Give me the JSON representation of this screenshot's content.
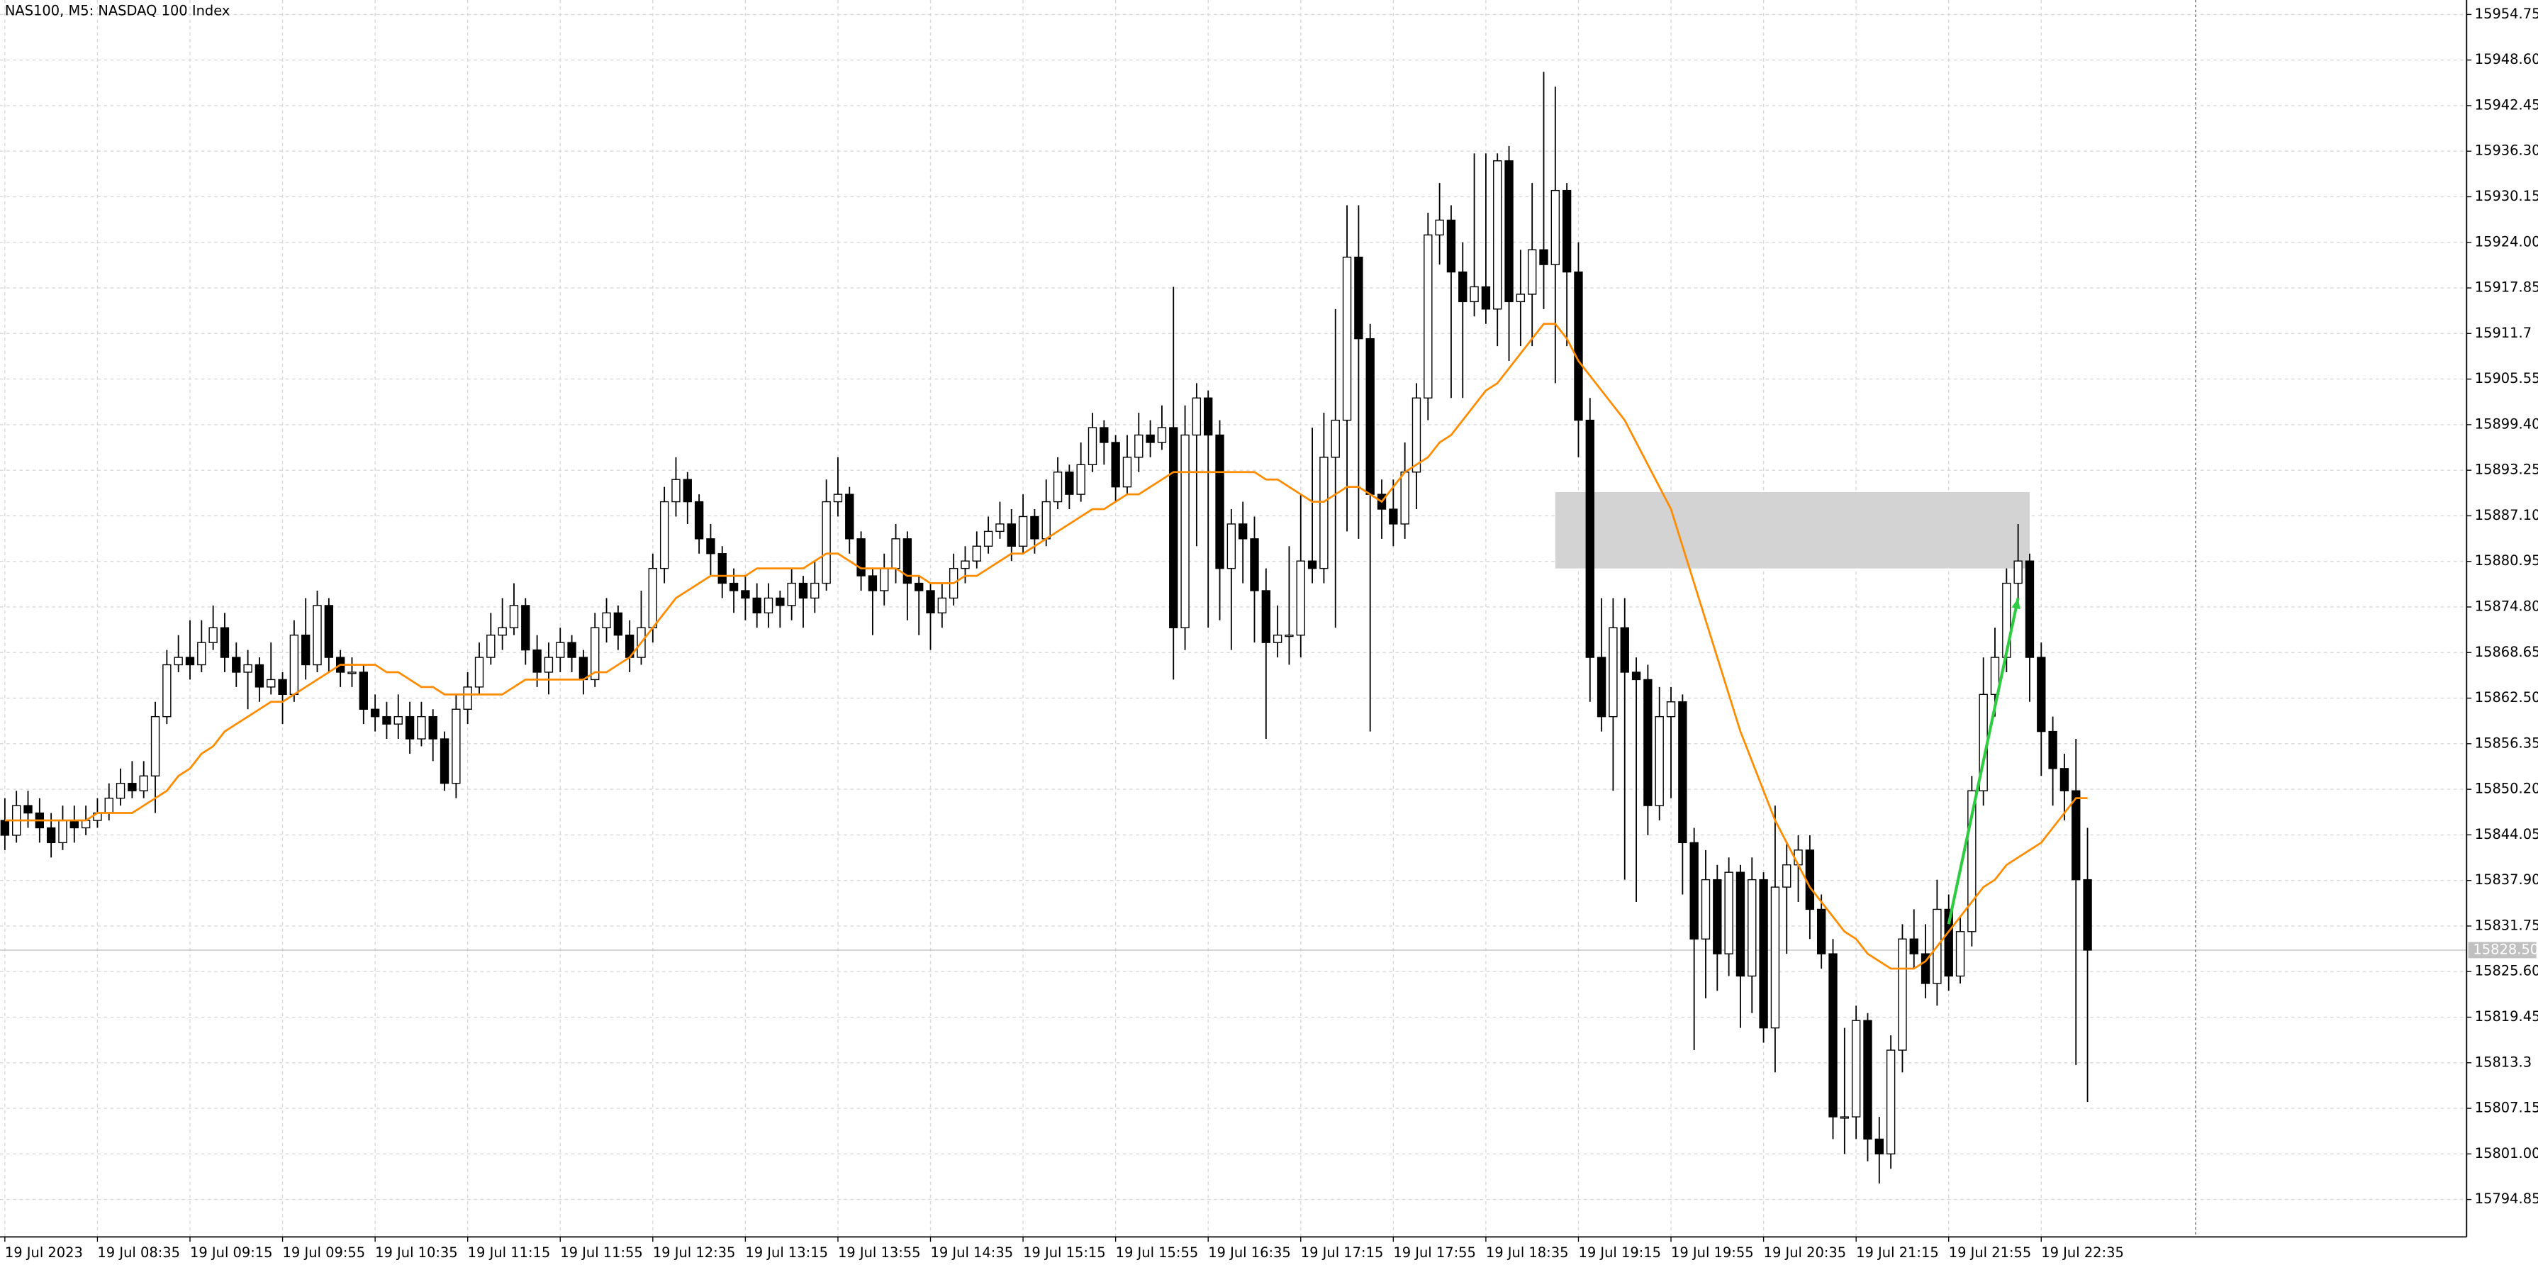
{
  "chart_data": {
    "type": "candlestick",
    "title": "NAS100, M5:  NASDAQ 100 Index",
    "categories": [
      "19 Jul 2023",
      null,
      null,
      null,
      null,
      null,
      null,
      null,
      "19 Jul 08:35",
      null,
      null,
      null,
      null,
      null,
      null,
      null,
      "19 Jul 09:15",
      null,
      null,
      null,
      null,
      null,
      null,
      null,
      "19 Jul 09:55",
      null,
      null,
      null,
      null,
      null,
      null,
      null,
      "19 Jul 10:35",
      null,
      null,
      null,
      null,
      null,
      null,
      null,
      "19 Jul 11:15",
      null,
      null,
      null,
      null,
      null,
      null,
      null,
      "19 Jul 11:55",
      null,
      null,
      null,
      null,
      null,
      null,
      null,
      "19 Jul 12:35",
      null,
      null,
      null,
      null,
      null,
      null,
      null,
      "19 Jul 13:15",
      null,
      null,
      null,
      null,
      null,
      null,
      null,
      "19 Jul 13:55",
      null,
      null,
      null,
      null,
      null,
      null,
      null,
      "19 Jul 14:35",
      null,
      null,
      null,
      null,
      null,
      null,
      null,
      "19 Jul 15:15",
      null,
      null,
      null,
      null,
      null,
      null,
      null,
      "19 Jul 15:55",
      null,
      null,
      null,
      null,
      null,
      null,
      null,
      "19 Jul 16:35",
      null,
      null,
      null,
      null,
      null,
      null,
      null,
      "19 Jul 17:15",
      null,
      null,
      null,
      null,
      null,
      null,
      null,
      "19 Jul 17:55",
      null,
      null,
      null,
      null,
      null,
      null,
      null,
      "19 Jul 18:35",
      null,
      null,
      null,
      null,
      null,
      null,
      null,
      "19 Jul 19:15",
      null,
      null,
      null,
      null,
      null,
      null,
      null,
      "19 Jul 19:55",
      null,
      null,
      null,
      null,
      null,
      null,
      null,
      "19 Jul 20:35",
      null,
      null,
      null,
      null,
      null,
      null,
      null,
      "19 Jul 21:15",
      null,
      null,
      null,
      null,
      null,
      null,
      null,
      "19 Jul 21:55",
      null,
      null,
      null,
      null,
      null,
      null,
      null,
      "19 Jul 22:35",
      null,
      null,
      null,
      null
    ],
    "open": [
      15846,
      15844,
      15848,
      15847,
      15845,
      15843,
      15846,
      15845,
      15846,
      15847,
      15849,
      15851,
      15850,
      15852,
      15860,
      15867,
      15868,
      15867,
      15870,
      15872,
      15868,
      15866,
      15867,
      15864,
      15865,
      15863,
      15871,
      15867,
      15875,
      15868,
      15866,
      15866,
      15861,
      15860,
      15859,
      15860,
      15857,
      15860,
      15857,
      15851,
      15861,
      15864,
      15868,
      15871,
      15872,
      15875,
      15869,
      15866,
      15868,
      15870,
      15868,
      15865,
      15872,
      15874,
      15871,
      15868,
      15872,
      15880,
      15889,
      15892,
      15889,
      15884,
      15882,
      15878,
      15877,
      15876,
      15874,
      15876,
      15875,
      15878,
      15876,
      15878,
      15889,
      15890,
      15884,
      15879,
      15877,
      15880,
      15884,
      15878,
      15877,
      15874,
      15876,
      15880,
      15881,
      15883,
      15885,
      15886,
      15883,
      15887,
      15884,
      15889,
      15893,
      15890,
      15894,
      15899,
      15897,
      15891,
      15895,
      15898,
      15897,
      15899,
      15872,
      15898,
      15903,
      15898,
      15880,
      15886,
      15884,
      15877,
      15870,
      15871,
      15871,
      15881,
      15880,
      15895,
      15900,
      15922,
      15911,
      15890,
      15888,
      15886,
      15893,
      15903,
      15925,
      15927,
      15920,
      15916,
      15918,
      15915,
      15935,
      15916,
      15917,
      15923,
      15921,
      15931,
      15920,
      15900,
      15868,
      15860,
      15872,
      15866,
      15865,
      15848,
      15860,
      15862,
      15843,
      15830,
      15838,
      15828,
      15839,
      15825,
      15838,
      15818,
      15837,
      15840,
      15842,
      15834,
      15828,
      15806,
      15806,
      15819,
      15803,
      15801,
      15815,
      15830,
      15828,
      15824,
      15834,
      15825,
      15831,
      15850,
      15863,
      15868,
      15878,
      15881,
      15868,
      15858,
      15853,
      15850,
      15838
    ],
    "high": [
      15849,
      15850,
      15850,
      15849,
      15847,
      15848,
      15848,
      15848,
      15849,
      15851,
      15853,
      15854,
      15854,
      15862,
      15869,
      15871,
      15873,
      15873,
      15875,
      15874,
      15870,
      15869,
      15868,
      15870,
      15866,
      15873,
      15876,
      15877,
      15876,
      15869,
      15868,
      15867,
      15863,
      15862,
      15863,
      15862,
      15862,
      15861,
      15858,
      15863,
      15866,
      15870,
      15874,
      15876,
      15878,
      15876,
      15871,
      15870,
      15872,
      15871,
      15869,
      15874,
      15876,
      15875,
      15873,
      15877,
      15882,
      15891,
      15895,
      15893,
      15890,
      15886,
      15883,
      15880,
      15879,
      15878,
      15878,
      15877,
      15880,
      15879,
      15881,
      15892,
      15895,
      15891,
      15885,
      15880,
      15882,
      15886,
      15885,
      15879,
      15878,
      15878,
      15882,
      15883,
      15885,
      15887,
      15889,
      15888,
      15890,
      15888,
      15892,
      15895,
      15894,
      15897,
      15901,
      15900,
      15898,
      15898,
      15901,
      15900,
      15902,
      15918,
      15902,
      15905,
      15904,
      15900,
      15888,
      15889,
      15887,
      15880,
      15875,
      15883,
      15890,
      15899,
      15901,
      15915,
      15929,
      15929,
      15913,
      15892,
      15892,
      15897,
      15905,
      15928,
      15932,
      15929,
      15924,
      15936,
      15936,
      15936,
      15937,
      15923,
      15932,
      15947,
      15945,
      15932,
      15924,
      15903,
      15876,
      15876,
      15876,
      15868,
      15867,
      15864,
      15864,
      15863,
      15845,
      15842,
      15840,
      15841,
      15840,
      15841,
      15839,
      15848,
      15843,
      15844,
      15844,
      15836,
      15830,
      15818,
      15821,
      15820,
      15806,
      15817,
      15832,
      15834,
      15832,
      15838,
      15836,
      15833,
      15852,
      15868,
      15872,
      15880,
      15886,
      15882,
      15870,
      15860,
      15855,
      15857,
      15845
    ],
    "low": [
      15842,
      15843,
      15845,
      15843,
      15841,
      15842,
      15843,
      15844,
      15845,
      15846,
      15848,
      15849,
      15849,
      15847,
      15859,
      15866,
      15865,
      15866,
      15869,
      15866,
      15864,
      15861,
      15862,
      15863,
      15859,
      15862,
      15865,
      15866,
      15866,
      15864,
      15864,
      15859,
      15858,
      15857,
      15857,
      15855,
      15856,
      15854,
      15850,
      15849,
      15859,
      15863,
      15867,
      15869,
      15871,
      15867,
      15864,
      15863,
      15866,
      15866,
      15863,
      15864,
      15870,
      15869,
      15866,
      15867,
      15870,
      15878,
      15887,
      15886,
      15882,
      15879,
      15876,
      15874,
      15873,
      15872,
      15872,
      15872,
      15873,
      15872,
      15874,
      15877,
      15887,
      15882,
      15877,
      15871,
      15875,
      15878,
      15873,
      15871,
      15869,
      15872,
      15875,
      15878,
      15880,
      15882,
      15884,
      15881,
      15882,
      15882,
      15883,
      15888,
      15888,
      15889,
      15893,
      15894,
      15889,
      15890,
      15893,
      15895,
      15896,
      15865,
      15869,
      15883,
      15872,
      15873,
      15869,
      15878,
      15870,
      15857,
      15868,
      15867,
      15868,
      15878,
      15878,
      15872,
      15885,
      15884,
      15858,
      15884,
      15883,
      15884,
      15888,
      15900,
      15921,
      15903,
      15903,
      15914,
      15913,
      15910,
      15908,
      15910,
      15910,
      15915,
      15905,
      15910,
      15895,
      15862,
      15858,
      15850,
      15838,
      15835,
      15844,
      15846,
      15849,
      15836,
      15815,
      15822,
      15823,
      15825,
      15818,
      15820,
      15816,
      15812,
      15828,
      15835,
      15830,
      15826,
      15803,
      15801,
      15803,
      15800,
      15797,
      15799,
      15812,
      15826,
      15822,
      15821,
      15823,
      15824,
      15829,
      15848,
      15860,
      15866,
      15875,
      15862,
      15852,
      15848,
      15846,
      15813,
      15808
    ],
    "close": [
      15844,
      15848,
      15847,
      15845,
      15843,
      15846,
      15845,
      15846,
      15847,
      15849,
      15851,
      15850,
      15852,
      15860,
      15867,
      15868,
      15867,
      15870,
      15872,
      15868,
      15866,
      15867,
      15864,
      15865,
      15863,
      15871,
      15867,
      15875,
      15868,
      15866,
      15866,
      15861,
      15860,
      15859,
      15860,
      15857,
      15860,
      15857,
      15851,
      15861,
      15864,
      15868,
      15871,
      15872,
      15875,
      15869,
      15866,
      15868,
      15870,
      15868,
      15865,
      15872,
      15874,
      15871,
      15868,
      15872,
      15880,
      15889,
      15892,
      15889,
      15884,
      15882,
      15878,
      15877,
      15876,
      15874,
      15876,
      15875,
      15878,
      15876,
      15878,
      15889,
      15890,
      15884,
      15879,
      15877,
      15880,
      15884,
      15878,
      15877,
      15874,
      15876,
      15880,
      15881,
      15883,
      15885,
      15886,
      15883,
      15887,
      15884,
      15889,
      15893,
      15890,
      15894,
      15899,
      15897,
      15891,
      15895,
      15898,
      15897,
      15899,
      15872,
      15898,
      15903,
      15898,
      15880,
      15886,
      15884,
      15877,
      15870,
      15871,
      15871,
      15881,
      15880,
      15895,
      15900,
      15922,
      15911,
      15890,
      15888,
      15886,
      15893,
      15903,
      15925,
      15927,
      15920,
      15916,
      15918,
      15915,
      15935,
      15916,
      15917,
      15923,
      15921,
      15931,
      15920,
      15900,
      15868,
      15860,
      15872,
      15866,
      15865,
      15848,
      15860,
      15862,
      15843,
      15830,
      15838,
      15828,
      15839,
      15825,
      15838,
      15818,
      15837,
      15840,
      15842,
      15834,
      15828,
      15806,
      15806,
      15819,
      15803,
      15801,
      15815,
      15830,
      15828,
      15824,
      15834,
      15825,
      15831,
      15850,
      15863,
      15868,
      15878,
      15881,
      15868,
      15858,
      15853,
      15850,
      15838,
      15828.5
    ],
    "ma": {
      "color": "#ff8c00",
      "values": [
        15846,
        15846,
        15846,
        15846,
        15846,
        15846,
        15846,
        15846,
        15847,
        15847,
        15847,
        15847,
        15848,
        15849,
        15850,
        15852,
        15853,
        15855,
        15856,
        15858,
        15859,
        15860,
        15861,
        15862,
        15862,
        15863,
        15864,
        15865,
        15866,
        15867,
        15867,
        15867,
        15867,
        15866,
        15866,
        15865,
        15864,
        15864,
        15863,
        15863,
        15863,
        15863,
        15863,
        15863,
        15864,
        15865,
        15865,
        15865,
        15865,
        15865,
        15865,
        15866,
        15866,
        15867,
        15868,
        15870,
        15872,
        15874,
        15876,
        15877,
        15878,
        15879,
        15879,
        15879,
        15879,
        15880,
        15880,
        15880,
        15880,
        15880,
        15881,
        15882,
        15882,
        15881,
        15880,
        15880,
        15880,
        15880,
        15879,
        15879,
        15878,
        15878,
        15878,
        15879,
        15879,
        15880,
        15881,
        15882,
        15882,
        15883,
        15884,
        15885,
        15886,
        15887,
        15888,
        15888,
        15889,
        15890,
        15890,
        15891,
        15892,
        15893,
        15893,
        15893,
        15893,
        15893,
        15893,
        15893,
        15893,
        15892,
        15892,
        15891,
        15890,
        15889,
        15889,
        15890,
        15891,
        15891,
        15890,
        15889,
        15891,
        15893,
        15894,
        15895,
        15897,
        15898,
        15900,
        15902,
        15904,
        15905,
        15907,
        15909,
        15911,
        15913,
        15913,
        15911,
        15908,
        15906,
        15904,
        15902,
        15900,
        15897,
        15894,
        15891,
        15888,
        15883,
        15878,
        15873,
        15868,
        15863,
        15858,
        15854,
        15850,
        15846,
        15843,
        15840,
        15837,
        15835,
        15833,
        15831,
        15830,
        15828,
        15827,
        15826,
        15826,
        15826,
        15827,
        15829,
        15831,
        15833,
        15835,
        15837,
        15838,
        15840,
        15841,
        15842,
        15843,
        15845,
        15847,
        15849,
        15849
      ]
    },
    "up_color": "#ffffff",
    "down_color": "#000000",
    "ylim": [
      15789.8,
      15956.7
    ],
    "yticks": [
      15954.75,
      {
        "value": 15948.6,
        "label": "15948.60"
      },
      15942.45,
      {
        "value": 15936.3,
        "label": "15936.30"
      },
      15930.15,
      {
        "value": 15924,
        "label": "15924.00"
      },
      15917.85,
      15911.7,
      15905.55,
      {
        "value": 15899.4,
        "label": "15899.40"
      },
      15893.25,
      {
        "value": 15887.1,
        "label": "15887.10"
      },
      15880.95,
      {
        "value": 15874.8,
        "label": "15874.80"
      },
      15868.65,
      {
        "value": 15862.5,
        "label": "15862.50"
      },
      15856.35,
      {
        "value": 15850.2,
        "label": "15850.20"
      },
      15844.05,
      {
        "value": 15837.9,
        "label": "15837.90"
      },
      15831.75,
      {
        "value": 15825.6,
        "label": "15825.60"
      },
      15819.45,
      15813.3,
      15807.15,
      {
        "value": 15801,
        "label": "15801.00"
      },
      15794.85
    ],
    "grid": true,
    "last_price": {
      "value": 15828.5,
      "label": "15828.50"
    },
    "zone": {
      "low": 15880,
      "high": 15890.3,
      "start": 134,
      "end": 175,
      "color": "#d3d3d3"
    },
    "arrow": {
      "from_index": 168,
      "from_price": 15832,
      "to_index": 174,
      "to_price": 15876,
      "color": "#2ecc40"
    }
  }
}
